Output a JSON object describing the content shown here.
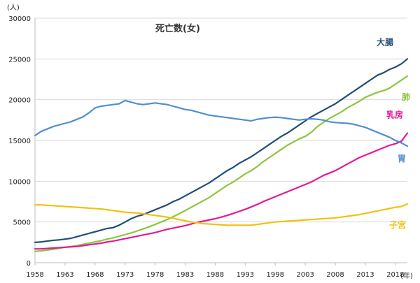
{
  "chart_data": {
    "type": "line",
    "title": "死亡数(女)",
    "y_unit": "(人)",
    "x_unit": "(年)",
    "xlim": [
      1958,
      2020
    ],
    "ylim": [
      0,
      30000
    ],
    "x_ticks": [
      1958,
      1963,
      1968,
      1973,
      1978,
      1983,
      1988,
      1993,
      1998,
      2003,
      2008,
      2013,
      2018
    ],
    "y_ticks": [
      0,
      5000,
      10000,
      15000,
      20000,
      25000,
      30000
    ],
    "grid": true,
    "x": [
      1958,
      1959,
      1960,
      1961,
      1962,
      1963,
      1964,
      1965,
      1966,
      1967,
      1968,
      1969,
      1970,
      1971,
      1972,
      1973,
      1974,
      1975,
      1976,
      1977,
      1978,
      1979,
      1980,
      1981,
      1982,
      1983,
      1984,
      1985,
      1986,
      1987,
      1988,
      1989,
      1990,
      1991,
      1992,
      1993,
      1994,
      1995,
      1996,
      1997,
      1998,
      1999,
      2000,
      2001,
      2002,
      2003,
      2004,
      2005,
      2006,
      2007,
      2008,
      2009,
      2010,
      2011,
      2012,
      2013,
      2014,
      2015,
      2016,
      2017,
      2018,
      2019,
      2020
    ],
    "series": [
      {
        "name": "大腸",
        "color": "#1f4e79",
        "values": [
          2500,
          2550,
          2650,
          2750,
          2800,
          2900,
          3000,
          3200,
          3400,
          3600,
          3800,
          4000,
          4200,
          4300,
          4600,
          5000,
          5400,
          5700,
          5900,
          6200,
          6500,
          6800,
          7100,
          7500,
          7800,
          8200,
          8600,
          9000,
          9400,
          9800,
          10300,
          10800,
          11300,
          11700,
          12200,
          12600,
          13000,
          13500,
          14000,
          14500,
          15000,
          15500,
          15900,
          16400,
          16900,
          17400,
          17900,
          18300,
          18700,
          19100,
          19500,
          20000,
          20500,
          21000,
          21500,
          22000,
          22500,
          23000,
          23300,
          23700,
          24000,
          24400,
          25000
        ]
      },
      {
        "name": "肺",
        "color": "#8cc63f",
        "values": [
          1400,
          1450,
          1550,
          1650,
          1750,
          1900,
          2000,
          2100,
          2250,
          2400,
          2550,
          2700,
          2900,
          3050,
          3250,
          3450,
          3650,
          3900,
          4150,
          4400,
          4700,
          5000,
          5300,
          5650,
          6000,
          6400,
          6800,
          7200,
          7600,
          8000,
          8500,
          9000,
          9500,
          9900,
          10400,
          10900,
          11300,
          11800,
          12400,
          12900,
          13400,
          13900,
          14400,
          14800,
          15200,
          15500,
          16000,
          16700,
          17200,
          17700,
          18100,
          18500,
          19000,
          19400,
          19800,
          20300,
          20600,
          20900,
          21100,
          21400,
          21900,
          22400,
          22900
        ]
      },
      {
        "name": "乳房",
        "color": "#e6189a",
        "values": [
          1700,
          1700,
          1750,
          1800,
          1850,
          1900,
          1950,
          2000,
          2100,
          2200,
          2300,
          2400,
          2550,
          2650,
          2800,
          2950,
          3100,
          3250,
          3400,
          3550,
          3700,
          3900,
          4100,
          4250,
          4400,
          4550,
          4750,
          4950,
          5100,
          5250,
          5400,
          5600,
          5800,
          6050,
          6300,
          6550,
          6850,
          7150,
          7500,
          7800,
          8100,
          8400,
          8700,
          9000,
          9300,
          9600,
          9900,
          10300,
          10700,
          11000,
          11300,
          11700,
          12100,
          12500,
          12900,
          13200,
          13500,
          13800,
          14100,
          14400,
          14600,
          14900,
          15900
        ]
      },
      {
        "name": "胃",
        "color": "#4f8fcf",
        "values": [
          15600,
          16100,
          16400,
          16700,
          16900,
          17100,
          17300,
          17600,
          17900,
          18400,
          19000,
          19200,
          19300,
          19400,
          19500,
          19900,
          19700,
          19500,
          19400,
          19500,
          19600,
          19500,
          19400,
          19200,
          19000,
          18800,
          18700,
          18500,
          18300,
          18100,
          18000,
          17900,
          17800,
          17700,
          17600,
          17500,
          17400,
          17600,
          17700,
          17800,
          17850,
          17800,
          17700,
          17600,
          17500,
          17600,
          17650,
          17600,
          17500,
          17300,
          17200,
          17150,
          17100,
          17000,
          16800,
          16600,
          16300,
          16000,
          15700,
          15400,
          15000,
          14700,
          14300
        ]
      },
      {
        "name": "子宮",
        "color": "#f2c010",
        "values": [
          7100,
          7100,
          7050,
          7000,
          6950,
          6900,
          6850,
          6800,
          6750,
          6700,
          6650,
          6600,
          6500,
          6400,
          6300,
          6200,
          6150,
          6100,
          6000,
          5900,
          5800,
          5700,
          5600,
          5450,
          5300,
          5150,
          5000,
          4900,
          4800,
          4750,
          4700,
          4650,
          4600,
          4600,
          4600,
          4600,
          4600,
          4700,
          4800,
          4900,
          5000,
          5050,
          5100,
          5150,
          5200,
          5250,
          5300,
          5350,
          5400,
          5450,
          5500,
          5600,
          5700,
          5800,
          5900,
          6050,
          6200,
          6350,
          6500,
          6650,
          6800,
          6900,
          7200
        ]
      }
    ]
  }
}
